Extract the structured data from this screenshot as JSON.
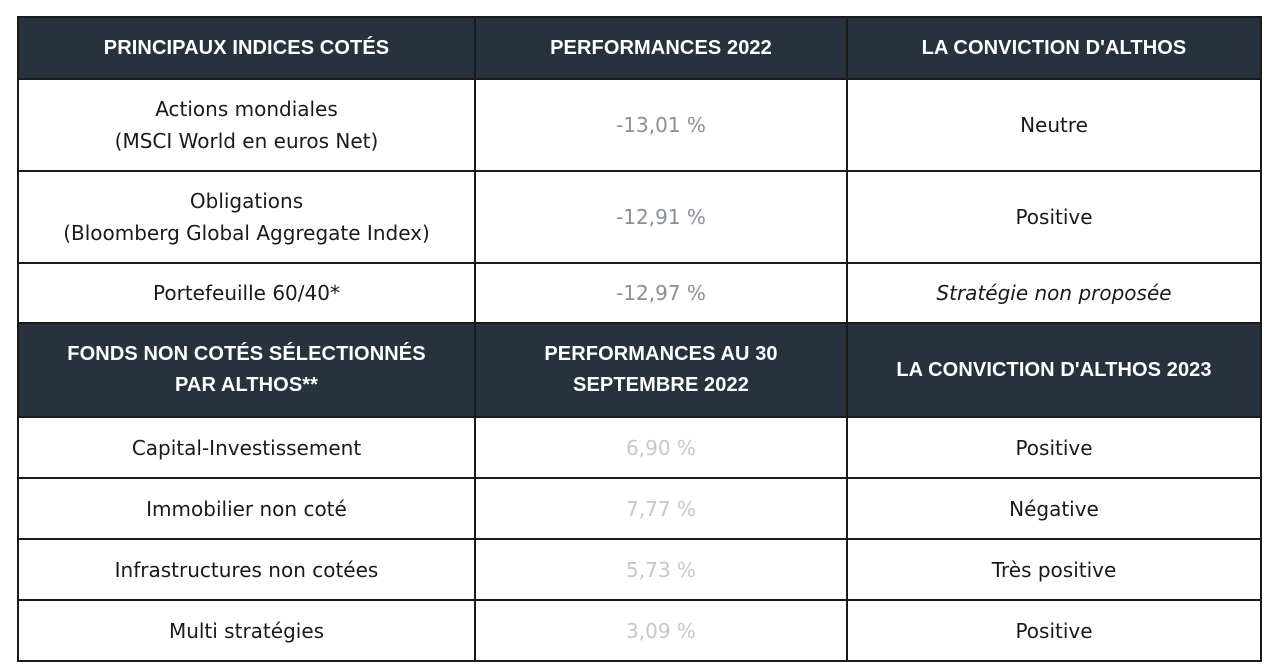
{
  "section1": {
    "headers": [
      "PRINCIPAUX INDICES COTÉS",
      "PERFORMANCES  2022",
      "LA CONVICTION D'ALTHOS"
    ],
    "rows": [
      {
        "name_line1": "Actions mondiales",
        "name_line2": "(MSCI World en euros Net)",
        "performance": "-13,01 %",
        "conviction": "Neutre"
      },
      {
        "name_line1": "Obligations",
        "name_line2": "(Bloomberg Global Aggregate Index)",
        "performance": "-12,91 %",
        "conviction": "Positive"
      },
      {
        "name_line1": "Portefeuille 60/40*",
        "name_line2": "",
        "performance": "-12,97 %",
        "conviction": "Stratégie non proposée"
      }
    ]
  },
  "section2": {
    "headers": [
      {
        "line1": "FONDS NON COTÉS SÉLECTIONNÉS",
        "line2": "PAR ALTHOS**"
      },
      {
        "line1": "PERFORMANCES AU 30",
        "line2": "SEPTEMBRE 2022"
      },
      {
        "line1": "LA CONVICTION D'ALTHOS 2023",
        "line2": ""
      }
    ],
    "rows": [
      {
        "name": "Capital-Investissement",
        "performance": "6,90 %",
        "conviction": "Positive"
      },
      {
        "name": "Immobilier non coté",
        "performance": "7,77 %",
        "conviction": "Négative"
      },
      {
        "name": "Infrastructures non cotées",
        "performance": "5,73 %",
        "conviction": "Très positive"
      },
      {
        "name": "Multi stratégies",
        "performance": "3,09 %",
        "conviction": "Positive"
      }
    ]
  },
  "colors": {
    "header_bg": "#28323f",
    "header_text": "#ffffff",
    "border": "#1a1a1a",
    "perf_listed": "#8a8f97",
    "perf_unlisted": "#c4c8cd"
  }
}
